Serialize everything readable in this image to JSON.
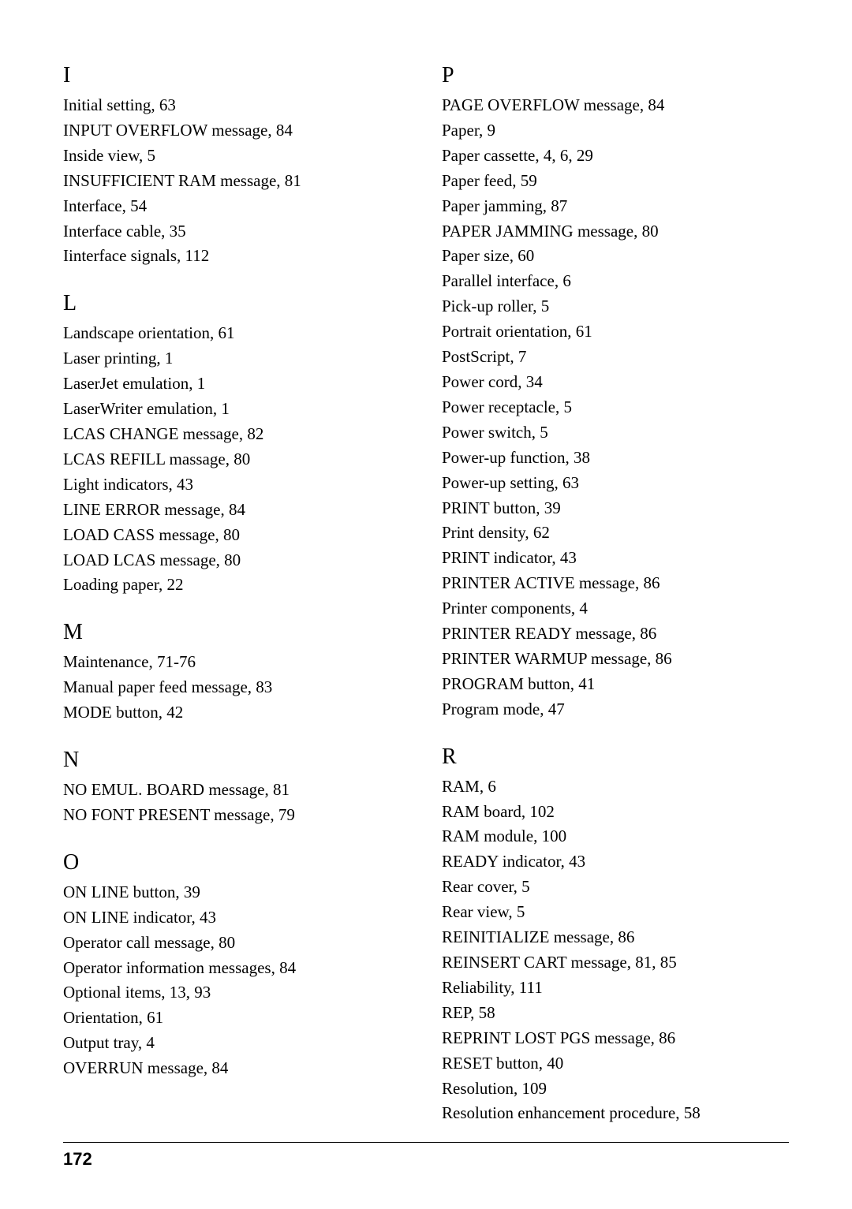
{
  "pageNumber": "172",
  "leftColumn": [
    {
      "heading": "I",
      "entries": [
        "Initial setting, 63",
        "INPUT OVERFLOW message, 84",
        "Inside view, 5",
        "INSUFFICIENT RAM message, 81",
        "Interface, 54",
        "Interface cable, 35",
        "Iinterface signals, 112"
      ]
    },
    {
      "heading": "L",
      "entries": [
        "Landscape orientation, 61",
        "Laser printing, 1",
        "LaserJet emulation, 1",
        "LaserWriter emulation, 1",
        "LCAS CHANGE message, 82",
        "LCAS REFILL massage, 80",
        "Light indicators, 43",
        "LINE ERROR message, 84",
        "LOAD CASS message, 80",
        "LOAD LCAS message, 80",
        "Loading paper, 22"
      ]
    },
    {
      "heading": "M",
      "entries": [
        "Maintenance, 71-76",
        "Manual paper feed message, 83",
        "MODE button, 42"
      ]
    },
    {
      "heading": "N",
      "entries": [
        "NO EMUL. BOARD message, 81",
        "NO FONT PRESENT message, 79"
      ]
    },
    {
      "heading": "O",
      "entries": [
        "ON LINE button, 39",
        "ON LINE indicator, 43",
        "Operator call message, 80",
        "Operator information messages, 84",
        "Optional items, 13, 93",
        "Orientation, 61",
        "Output tray, 4",
        "OVERRUN message, 84"
      ]
    }
  ],
  "rightColumn": [
    {
      "heading": "P",
      "entries": [
        "PAGE OVERFLOW message, 84",
        "Paper, 9",
        "Paper cassette, 4, 6, 29",
        "Paper feed, 59",
        "Paper jamming, 87",
        "PAPER JAMMING message, 80",
        "Paper size, 60",
        "Parallel interface, 6",
        "Pick-up roller, 5",
        "Portrait orientation, 61",
        "PostScript, 7",
        "Power cord, 34",
        "Power receptacle, 5",
        "Power switch, 5",
        "Power-up function, 38",
        "Power-up setting, 63",
        "PRINT button, 39",
        "Print density, 62",
        "PRINT indicator, 43",
        "PRINTER ACTIVE message, 86",
        "Printer components, 4",
        "PRINTER READY message, 86",
        "PRINTER WARMUP message, 86",
        "PROGRAM button, 41",
        "Program mode, 47"
      ]
    },
    {
      "heading": "R",
      "entries": [
        "RAM, 6",
        "RAM board, 102",
        "RAM module, 100",
        "READY indicator, 43",
        "Rear cover, 5",
        "Rear view, 5",
        "REINITIALIZE message, 86",
        "REINSERT CART message, 81, 85",
        "Reliability, 111",
        "REP, 58",
        "REPRINT LOST PGS message, 86",
        "RESET button, 40",
        "Resolution, 109",
        "Resolution enhancement procedure, 58"
      ]
    }
  ]
}
